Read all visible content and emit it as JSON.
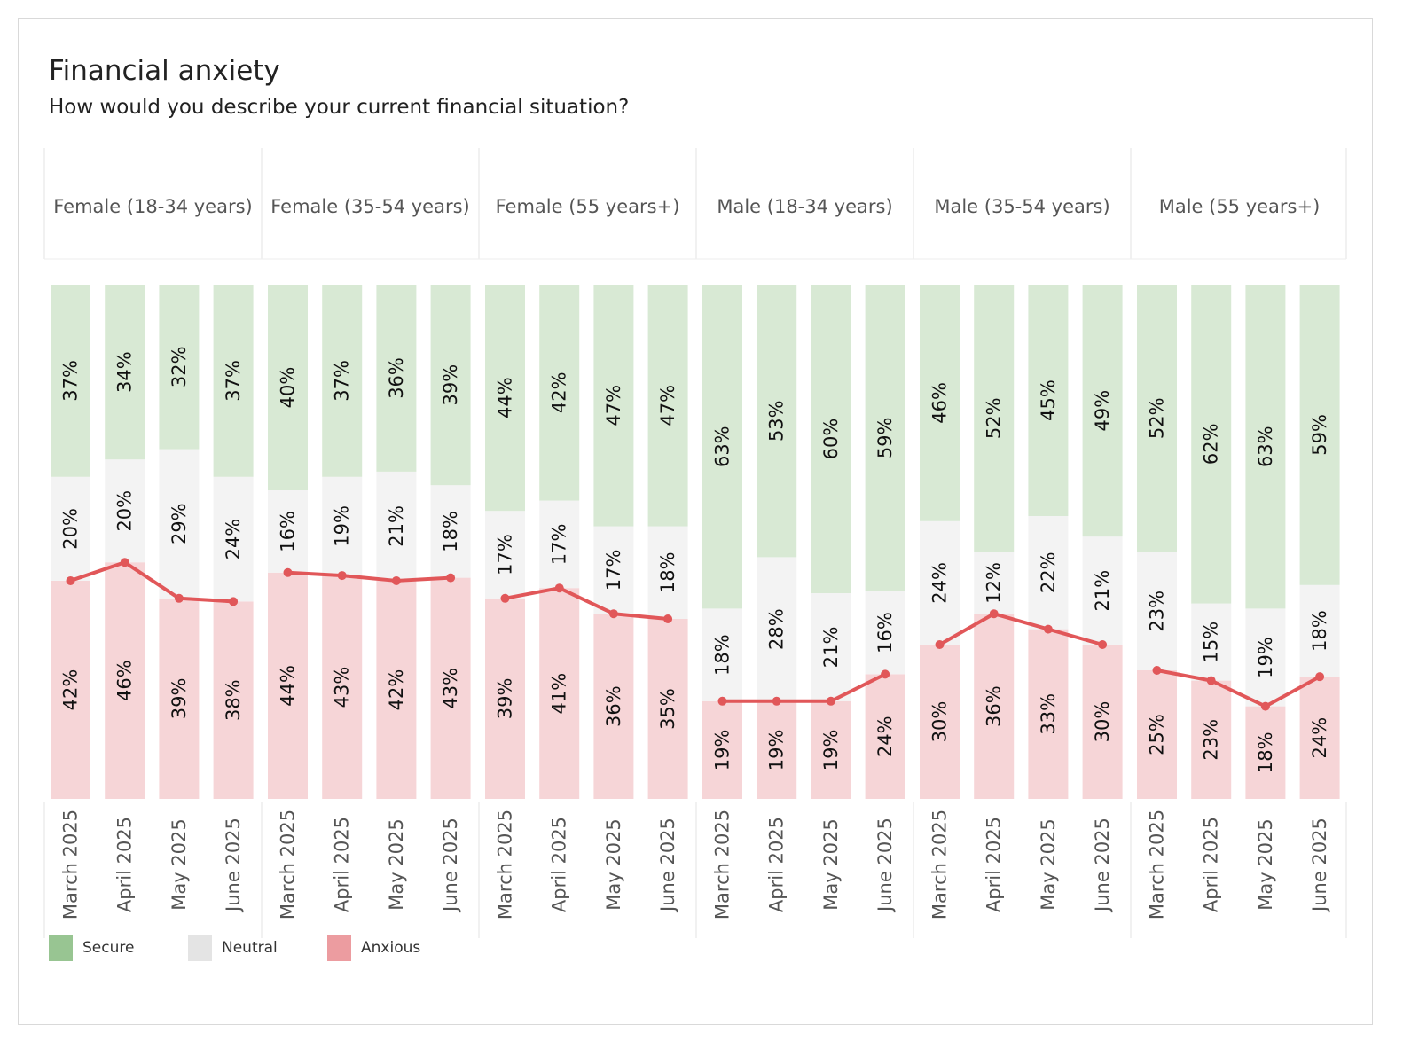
{
  "title": "Financial anxiety",
  "subtitle": "How would you describe your current financial situation?",
  "colors": {
    "secure_fill": "#d8e9d4",
    "neutral_fill": "#f3f3f3",
    "anxious_fill": "#f6d5d7",
    "anxious_line": "#e15759",
    "secure_legend": "#98c592",
    "neutral_legend": "#e4e4e4",
    "anxious_legend": "#ec9ca0",
    "label_text": "#111111",
    "axis_text": "#555555"
  },
  "legend": [
    {
      "label": "Secure",
      "color_key": "secure_legend"
    },
    {
      "label": "Neutral",
      "color_key": "neutral_legend"
    },
    {
      "label": "Anxious",
      "color_key": "anxious_legend"
    }
  ],
  "chart_data": {
    "type": "bar",
    "stacking": "100% stacked with line overlay on Anxious share",
    "categories": [
      "March 2025",
      "April 2025",
      "May 2025",
      "June 2025"
    ],
    "panels": [
      {
        "name": "Female (18-34 years)",
        "anxious": [
          42,
          46,
          39,
          38
        ],
        "neutral": [
          20,
          20,
          29,
          24
        ],
        "secure": [
          37,
          34,
          32,
          37
        ]
      },
      {
        "name": "Female (35-54 years)",
        "anxious": [
          44,
          43,
          42,
          43
        ],
        "neutral": [
          16,
          19,
          21,
          18
        ],
        "secure": [
          40,
          37,
          36,
          39
        ]
      },
      {
        "name": "Female (55 years+)",
        "anxious": [
          39,
          41,
          36,
          35
        ],
        "neutral": [
          17,
          17,
          17,
          18
        ],
        "secure": [
          44,
          42,
          47,
          47
        ]
      },
      {
        "name": "Male (18-34 years)",
        "anxious": [
          19,
          19,
          19,
          24
        ],
        "neutral": [
          18,
          28,
          21,
          16
        ],
        "secure": [
          63,
          53,
          60,
          59
        ]
      },
      {
        "name": "Male (35-54 years)",
        "anxious": [
          30,
          36,
          33,
          30
        ],
        "neutral": [
          24,
          12,
          22,
          21
        ],
        "secure": [
          46,
          52,
          45,
          49
        ]
      },
      {
        "name": "Male (55 years+)",
        "anxious": [
          25,
          23,
          18,
          24
        ],
        "neutral": [
          23,
          15,
          19,
          18
        ],
        "secure": [
          52,
          62,
          63,
          59
        ]
      }
    ],
    "series_order": [
      "anxious",
      "neutral",
      "secure"
    ],
    "legend_position": "bottom-left",
    "y_range": [
      0,
      100
    ]
  }
}
